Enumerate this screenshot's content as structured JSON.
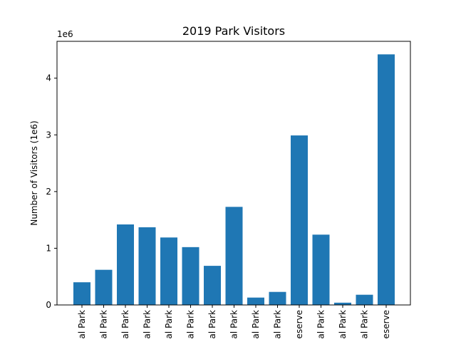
{
  "chart_data": {
    "type": "bar",
    "title": "2019 Park Visitors",
    "ylabel": "Number of Visitors (1e6)",
    "xlabel": "",
    "y_offset_text": "1e6",
    "ylim": [
      0,
      4650000
    ],
    "yticks": [
      0,
      1000000,
      2000000,
      3000000,
      4000000
    ],
    "ytick_labels": [
      "0",
      "1",
      "2",
      "3",
      "4"
    ],
    "categories": [
      "al Park",
      "al Park",
      "al Park",
      "al Park",
      "al Park",
      "al Park",
      "al Park",
      "al Park",
      "al Park",
      "al Park",
      "eserve",
      "al Park",
      "al Park",
      "al Park",
      "eserve"
    ],
    "values": [
      400000,
      620000,
      1420000,
      1370000,
      1190000,
      1020000,
      690000,
      1730000,
      130000,
      230000,
      2990000,
      1240000,
      40000,
      180000,
      4420000
    ],
    "bar_color": "#1f77b4",
    "grid": false,
    "legend": "none"
  }
}
